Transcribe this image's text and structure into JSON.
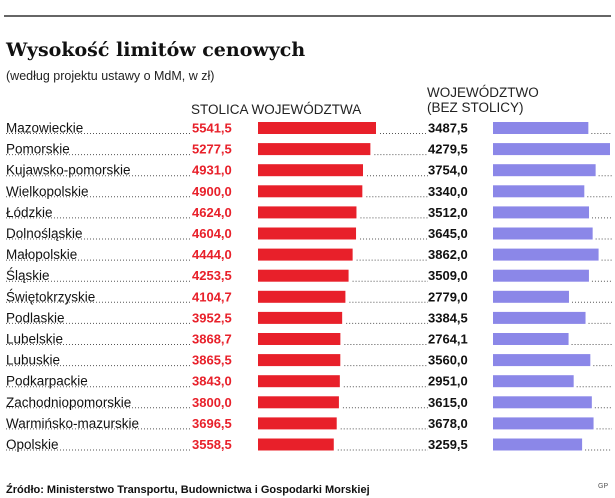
{
  "chart_data": {
    "type": "bar",
    "title": "Wysokość limitów cenowych",
    "subtitle": "(według projektu ustawy o MdM, w zł)",
    "categories": [
      "Mazowieckie",
      "Pomorskie",
      "Kujawsko-pomorskie",
      "Wielkopolskie",
      "Łódzkie",
      "Dolnośląskie",
      "Małopolskie",
      "Śląskie",
      "Świętokrzyskie",
      "Podlaskie",
      "Lubelskie",
      "Lubuskie",
      "Podkarpackie",
      "Zachodniopomorskie",
      "Warmińsko-mazurskie",
      "Opolskie"
    ],
    "series": [
      {
        "name": "STOLICA WOJEWÓDZTWA",
        "color": "#e8202a",
        "values": [
          5541.5,
          5277.5,
          4931.0,
          4900.0,
          4624.0,
          4604.0,
          4444.0,
          4253.5,
          4104.7,
          3952.5,
          3868.7,
          3865.5,
          3843.0,
          3800.0,
          3696.5,
          3558.5
        ],
        "labels": [
          "5541,5",
          "5277,5",
          "4931,0",
          "4900,0",
          "4624,0",
          "4604,0",
          "4444,0",
          "4253,5",
          "4104,7",
          "3952,5",
          "3868,7",
          "3865,5",
          "3843,0",
          "3800,0",
          "3696,5",
          "3558,5"
        ]
      },
      {
        "name": "WOJEWÓDZTWO (BEZ STOLICY)",
        "name_lines": [
          "WOJEWÓDZTWO",
          "(BEZ STOLICY)"
        ],
        "color": "#8b87e8",
        "values": [
          3487.5,
          4279.5,
          3754.0,
          3340.0,
          3512.0,
          3645.0,
          3862.0,
          3509.0,
          2779.0,
          3384.5,
          2764.1,
          3560.0,
          2951.0,
          3615.0,
          3678.0,
          3259.5
        ],
        "labels": [
          "3487,5",
          "4279,5",
          "3754,0",
          "3340,0",
          "3512,0",
          "3645,0",
          "3862,0",
          "3509,0",
          "2779,0",
          "3384,5",
          "2764,1",
          "3560,0",
          "2951,0",
          "3615,0",
          "3678,0",
          "3259,5"
        ]
      }
    ],
    "source": "Źródło: Ministerstwo Transportu, Budownictwa i Gospodarki Morskiej",
    "corner_mark": "GP"
  }
}
